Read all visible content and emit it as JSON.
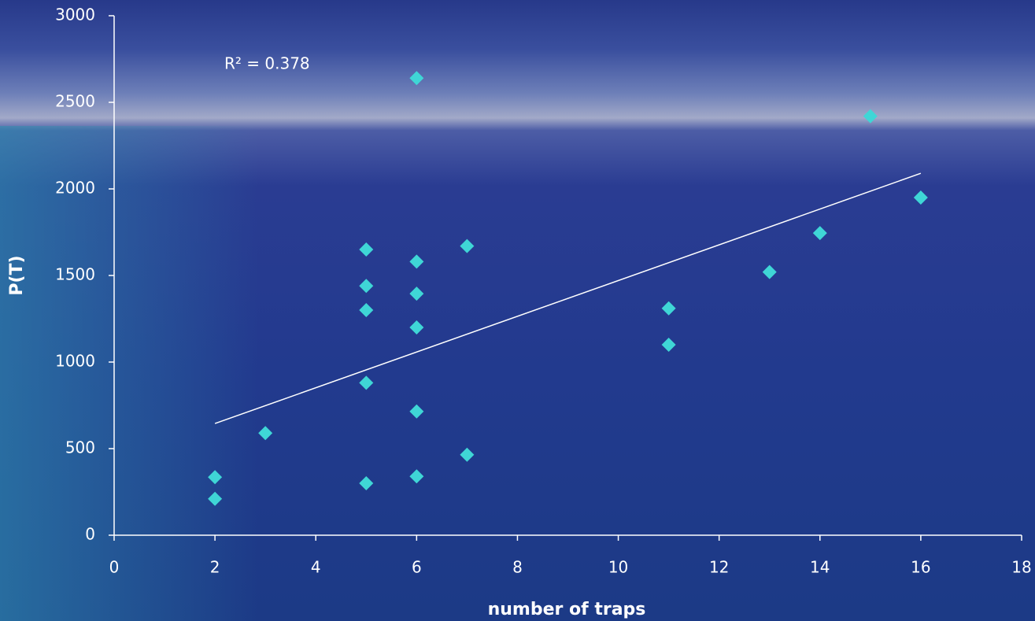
{
  "chart_data": {
    "type": "scatter",
    "x_label": "number of traps",
    "y_label": "P(T)",
    "annotation": "R² = 0.378",
    "x": [
      2,
      2,
      3,
      5,
      5,
      5,
      5,
      5,
      6,
      6,
      6,
      6,
      6,
      6,
      7,
      7,
      11,
      11,
      13,
      14,
      15,
      16
    ],
    "values": [
      335,
      210,
      590,
      1650,
      1440,
      1300,
      880,
      300,
      2640,
      1580,
      1395,
      1200,
      715,
      340,
      1670,
      465,
      1310,
      1100,
      1520,
      1745,
      2420,
      1950
    ],
    "color": "#3fd6d6",
    "trendline": {
      "x": [
        2,
        16
      ],
      "values": [
        645,
        2090
      ],
      "color": "#ffffff"
    },
    "xlim": [
      0,
      18
    ],
    "xticks": [
      0,
      2,
      4,
      6,
      8,
      10,
      12,
      14,
      16,
      18
    ],
    "ylim": [
      0,
      3000
    ],
    "yticks": [
      0,
      500,
      1000,
      1500,
      2000,
      2500,
      3000
    ]
  }
}
